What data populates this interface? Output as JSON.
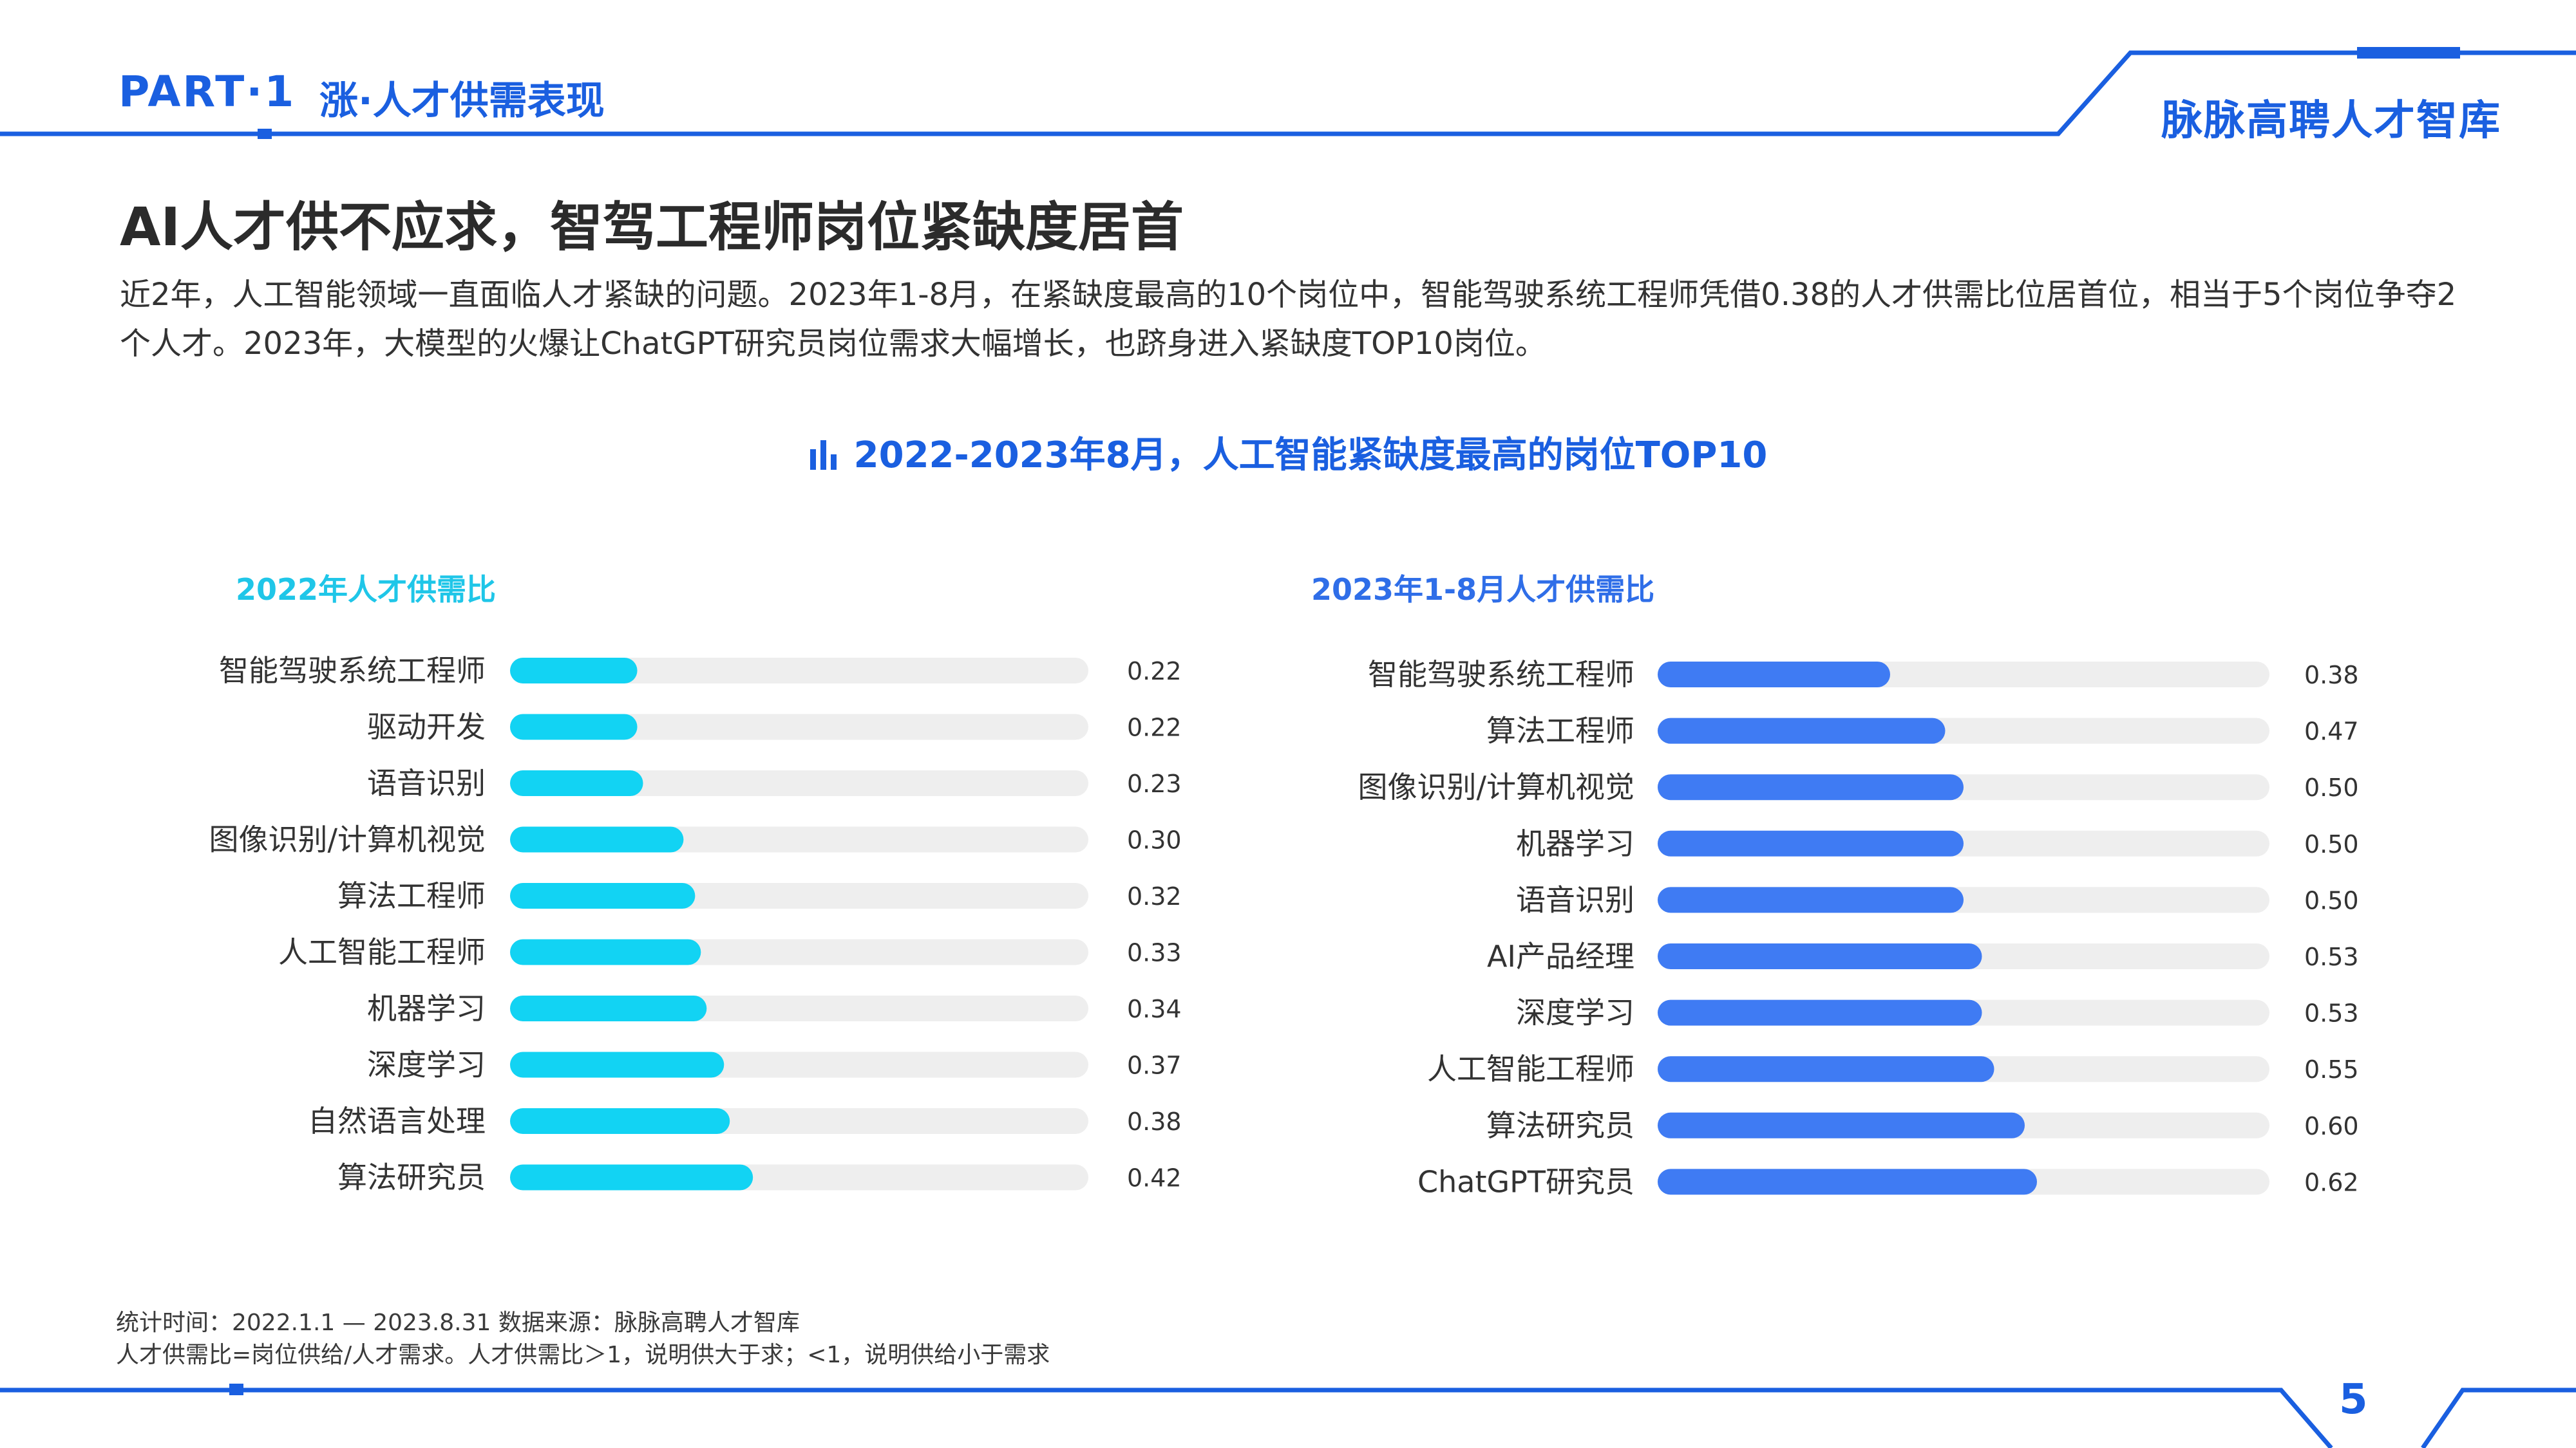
{
  "header": {
    "part_label": "PART",
    "part_separator": "·",
    "part_number": "1",
    "section_label": "涨·人才供需表现",
    "brand": "脉脉高聘人才智库"
  },
  "heading": "AI人才供不应求，智驾工程师岗位紧缺度居首",
  "summary": "近2年，人工智能领域一直面临人才紧缺的问题。2023年1-8月，在紧缺度最高的10个岗位中，智能驾驶系统工程师凭借0.38的人才供需比位居首位，相当于5个岗位争夺2个人才。2023年，大模型的火爆让ChatGPT研究员岗位需求大幅增长，也跻身进入紧缺度TOP10岗位。",
  "chart_title": "2022-2023年8月，人工智能紧缺度最高的岗位TOP10",
  "chart_title_icon": "bar-chart-icon",
  "chart_data": [
    {
      "type": "bar",
      "orientation": "horizontal",
      "title": "2022年人才供需比",
      "categories": [
        "智能驾驶系统工程师",
        "驱动开发",
        "语音识别",
        "图像识别/计算机视觉",
        "算法工程师",
        "人工智能工程师",
        "机器学习",
        "深度学习",
        "自然语言处理",
        "算法研究员"
      ],
      "values": [
        0.22,
        0.22,
        0.23,
        0.3,
        0.32,
        0.33,
        0.34,
        0.37,
        0.38,
        0.42
      ],
      "value_labels": [
        "0.22",
        "0.22",
        "0.23",
        "0.30",
        "0.32",
        "0.33",
        "0.34",
        "0.37",
        "0.38",
        "0.42"
      ],
      "xlim": [
        0,
        1.0
      ],
      "grid": false,
      "bar_color": "#12d3f3",
      "track_color": "#eeeeee"
    },
    {
      "type": "bar",
      "orientation": "horizontal",
      "title": "2023年1-8月人才供需比",
      "categories": [
        "智能驾驶系统工程师",
        "算法工程师",
        "图像识别/计算机视觉",
        "机器学习",
        "语音识别",
        "AI产品经理",
        "深度学习",
        "人工智能工程师",
        "算法研究员",
        "ChatGPT研究员"
      ],
      "values": [
        0.38,
        0.47,
        0.5,
        0.5,
        0.5,
        0.53,
        0.53,
        0.55,
        0.6,
        0.62
      ],
      "value_labels": [
        "0.38",
        "0.47",
        "0.50",
        "0.50",
        "0.50",
        "0.53",
        "0.53",
        "0.55",
        "0.60",
        "0.62"
      ],
      "xlim": [
        0,
        1.0
      ],
      "grid": false,
      "bar_color": "#3f7bf3",
      "track_color": "#eeeeee"
    }
  ],
  "footer": {
    "note1": "统计时间：2022.1.1 — 2023.8.31   数据来源：脉脉高聘人才智库",
    "note2": "人才供需比=岗位供给/人才需求。人才供需比＞1，说明供大于求；<1，说明供给小于需求"
  },
  "page_number": "5",
  "colors": {
    "accent": "#1a5fe0",
    "cyan": "#12d3f3",
    "blue": "#3f7bf3",
    "track": "#eeeeee",
    "text": "#333333"
  }
}
